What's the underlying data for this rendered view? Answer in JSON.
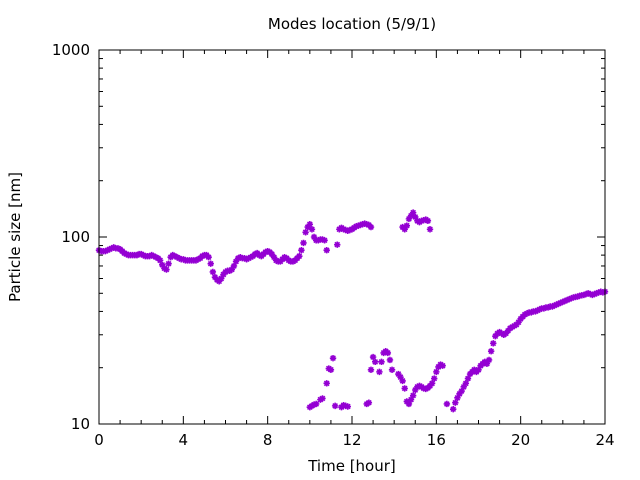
{
  "chart_data": {
    "type": "scatter",
    "title": "Modes location (5/9/1)",
    "xlabel": "Time [hour]",
    "ylabel": "Particle size [nm]",
    "xlim": [
      0,
      24
    ],
    "ylim": [
      10,
      1000
    ],
    "yscale": "log",
    "xticks": [
      0,
      4,
      8,
      12,
      16,
      20,
      24
    ],
    "xtick_labels": [
      "0",
      "4",
      "8",
      "12",
      "16",
      "20",
      "24"
    ],
    "yticks": [
      10,
      100,
      1000
    ],
    "ytick_labels": [
      "10",
      "100",
      "1000"
    ],
    "grid": false,
    "legend": "none",
    "marker_color": "#9400d3",
    "series": [
      {
        "points": [
          [
            0.0,
            85
          ],
          [
            0.1,
            84
          ],
          [
            0.2,
            84
          ],
          [
            0.3,
            84
          ],
          [
            0.4,
            85
          ],
          [
            0.5,
            86
          ],
          [
            0.6,
            87
          ],
          [
            0.7,
            88
          ],
          [
            0.8,
            87
          ],
          [
            0.9,
            87
          ],
          [
            1.0,
            86
          ],
          [
            1.1,
            84
          ],
          [
            1.2,
            82
          ],
          [
            1.3,
            81
          ],
          [
            1.4,
            80
          ],
          [
            1.5,
            80
          ],
          [
            1.6,
            80
          ],
          [
            1.7,
            80
          ],
          [
            1.8,
            80
          ],
          [
            1.9,
            81
          ],
          [
            2.0,
            81
          ],
          [
            2.1,
            80
          ],
          [
            2.2,
            79
          ],
          [
            2.3,
            79
          ],
          [
            2.4,
            79
          ],
          [
            2.5,
            80
          ],
          [
            2.6,
            79
          ],
          [
            2.7,
            78
          ],
          [
            2.8,
            77
          ],
          [
            2.9,
            75
          ],
          [
            3.0,
            71
          ],
          [
            3.1,
            68
          ],
          [
            3.2,
            67
          ],
          [
            3.3,
            72
          ],
          [
            3.4,
            78
          ],
          [
            3.5,
            80
          ],
          [
            3.6,
            79
          ],
          [
            3.7,
            78
          ],
          [
            3.8,
            77
          ],
          [
            3.9,
            76
          ],
          [
            4.0,
            76
          ],
          [
            4.1,
            75
          ],
          [
            4.2,
            75
          ],
          [
            4.3,
            75
          ],
          [
            4.4,
            75
          ],
          [
            4.5,
            75
          ],
          [
            4.6,
            75
          ],
          [
            4.7,
            76
          ],
          [
            4.8,
            77
          ],
          [
            4.9,
            79
          ],
          [
            5.0,
            80
          ],
          [
            5.1,
            80
          ],
          [
            5.2,
            78
          ],
          [
            5.3,
            72
          ],
          [
            5.4,
            65
          ],
          [
            5.5,
            61
          ],
          [
            5.6,
            59
          ],
          [
            5.7,
            58
          ],
          [
            5.8,
            60
          ],
          [
            5.9,
            63
          ],
          [
            6.0,
            65
          ],
          [
            6.1,
            66
          ],
          [
            6.2,
            66
          ],
          [
            6.3,
            67
          ],
          [
            6.4,
            70
          ],
          [
            6.5,
            74
          ],
          [
            6.6,
            77
          ],
          [
            6.7,
            78
          ],
          [
            6.8,
            77
          ],
          [
            6.9,
            77
          ],
          [
            7.0,
            76
          ],
          [
            7.1,
            77
          ],
          [
            7.2,
            78
          ],
          [
            7.3,
            79
          ],
          [
            7.4,
            81
          ],
          [
            7.5,
            82
          ],
          [
            7.6,
            80
          ],
          [
            7.7,
            79
          ],
          [
            7.8,
            81
          ],
          [
            7.9,
            83
          ],
          [
            8.0,
            84
          ],
          [
            8.1,
            83
          ],
          [
            8.2,
            81
          ],
          [
            8.3,
            78
          ],
          [
            8.4,
            75
          ],
          [
            8.5,
            74
          ],
          [
            8.6,
            74
          ],
          [
            8.7,
            76
          ],
          [
            8.8,
            78
          ],
          [
            8.9,
            77
          ],
          [
            9.0,
            75
          ],
          [
            9.1,
            74
          ],
          [
            9.2,
            74
          ],
          [
            9.3,
            75
          ],
          [
            9.4,
            77
          ],
          [
            9.5,
            79
          ],
          [
            9.6,
            85
          ],
          [
            9.7,
            93
          ],
          [
            9.8,
            106
          ],
          [
            9.9,
            113
          ],
          [
            10.0,
            117
          ],
          [
            10.1,
            110
          ],
          [
            10.2,
            100
          ],
          [
            10.3,
            96
          ],
          [
            10.4,
            96
          ],
          [
            10.5,
            97
          ],
          [
            10.6,
            97
          ],
          [
            10.7,
            96
          ],
          [
            10.8,
            85
          ],
          [
            11.3,
            91
          ],
          [
            11.4,
            110
          ],
          [
            11.5,
            112
          ],
          [
            11.6,
            110
          ],
          [
            11.7,
            109
          ],
          [
            11.8,
            108
          ],
          [
            11.9,
            109
          ],
          [
            12.0,
            110
          ],
          [
            12.1,
            112
          ],
          [
            12.2,
            114
          ],
          [
            12.3,
            115
          ],
          [
            12.4,
            116
          ],
          [
            12.5,
            117
          ],
          [
            12.6,
            118
          ],
          [
            12.7,
            117
          ],
          [
            12.8,
            116
          ],
          [
            12.9,
            113
          ],
          [
            14.4,
            113
          ],
          [
            14.5,
            110
          ],
          [
            14.6,
            115
          ],
          [
            14.7,
            125
          ],
          [
            14.8,
            130
          ],
          [
            14.9,
            135
          ],
          [
            15.0,
            128
          ],
          [
            15.1,
            122
          ],
          [
            15.2,
            120
          ],
          [
            15.3,
            122
          ],
          [
            15.4,
            123
          ],
          [
            15.5,
            124
          ],
          [
            15.6,
            122
          ],
          [
            15.7,
            110
          ]
        ]
      },
      {
        "points": [
          [
            10.0,
            12.3
          ],
          [
            10.1,
            12.5
          ],
          [
            10.2,
            12.7
          ],
          [
            10.3,
            12.8
          ],
          [
            10.5,
            13.5
          ],
          [
            10.6,
            13.7
          ],
          [
            10.8,
            16.5
          ],
          [
            10.9,
            19.8
          ],
          [
            11.0,
            19.5
          ],
          [
            11.1,
            22.5
          ],
          [
            11.2,
            12.5
          ],
          [
            11.5,
            12.3
          ],
          [
            11.6,
            12.6
          ],
          [
            11.7,
            12.5
          ],
          [
            11.8,
            12.4
          ],
          [
            12.7,
            12.8
          ],
          [
            12.8,
            13.0
          ],
          [
            12.9,
            19.5
          ],
          [
            13.0,
            22.8
          ],
          [
            13.1,
            21.5
          ],
          [
            13.3,
            19.0
          ],
          [
            13.4,
            21.5
          ],
          [
            13.5,
            24.0
          ],
          [
            13.6,
            24.5
          ],
          [
            13.7,
            24.0
          ],
          [
            13.8,
            22.0
          ],
          [
            13.9,
            19.5
          ],
          [
            14.2,
            18.5
          ],
          [
            14.3,
            17.8
          ],
          [
            14.4,
            17.0
          ],
          [
            14.5,
            15.5
          ],
          [
            14.6,
            13.2
          ],
          [
            14.7,
            12.8
          ],
          [
            14.8,
            13.5
          ],
          [
            14.9,
            14.2
          ],
          [
            15.0,
            15.2
          ],
          [
            15.1,
            15.8
          ],
          [
            15.2,
            16.0
          ],
          [
            15.3,
            15.8
          ],
          [
            15.4,
            15.5
          ],
          [
            15.5,
            15.4
          ],
          [
            15.6,
            15.6
          ],
          [
            15.7,
            16.0
          ],
          [
            15.8,
            16.5
          ],
          [
            15.9,
            17.5
          ],
          [
            16.0,
            19.0
          ],
          [
            16.1,
            20.2
          ],
          [
            16.2,
            20.8
          ],
          [
            16.3,
            20.5
          ],
          [
            16.5,
            12.8
          ],
          [
            16.8,
            12.0
          ],
          [
            16.9,
            13.0
          ],
          [
            17.0,
            13.8
          ],
          [
            17.1,
            14.5
          ],
          [
            17.2,
            15.0
          ],
          [
            17.3,
            15.8
          ],
          [
            17.4,
            16.5
          ],
          [
            17.5,
            17.5
          ],
          [
            17.6,
            18.5
          ],
          [
            17.7,
            19.0
          ],
          [
            17.8,
            19.5
          ],
          [
            17.9,
            19.0
          ],
          [
            18.0,
            19.5
          ],
          [
            18.1,
            20.5
          ],
          [
            18.2,
            21.0
          ],
          [
            18.3,
            21.5
          ],
          [
            18.4,
            21.0
          ],
          [
            18.5,
            22.0
          ],
          [
            18.6,
            24.5
          ],
          [
            18.7,
            27.0
          ],
          [
            18.8,
            29.5
          ],
          [
            18.9,
            30.5
          ],
          [
            19.0,
            31.0
          ],
          [
            19.1,
            30.5
          ],
          [
            19.2,
            30.0
          ],
          [
            19.3,
            30.5
          ],
          [
            19.4,
            31.5
          ],
          [
            19.5,
            32.5
          ],
          [
            19.6,
            33.0
          ],
          [
            19.7,
            33.5
          ],
          [
            19.8,
            34.0
          ],
          [
            19.9,
            35.0
          ],
          [
            20.0,
            36.5
          ],
          [
            20.1,
            37.5
          ],
          [
            20.2,
            38.5
          ],
          [
            20.3,
            39.0
          ],
          [
            20.4,
            39.5
          ],
          [
            20.5,
            39.5
          ],
          [
            20.6,
            40.0
          ],
          [
            20.7,
            40.0
          ],
          [
            20.8,
            40.5
          ],
          [
            20.9,
            41.0
          ],
          [
            21.0,
            41.5
          ],
          [
            21.1,
            41.5
          ],
          [
            21.2,
            42.0
          ],
          [
            21.3,
            42.0
          ],
          [
            21.4,
            42.5
          ],
          [
            21.5,
            42.5
          ],
          [
            21.6,
            43.0
          ],
          [
            21.7,
            43.5
          ],
          [
            21.8,
            44.0
          ],
          [
            21.9,
            44.5
          ],
          [
            22.0,
            45.0
          ],
          [
            22.1,
            45.5
          ],
          [
            22.2,
            46.0
          ],
          [
            22.3,
            46.5
          ],
          [
            22.4,
            47.0
          ],
          [
            22.5,
            47.5
          ],
          [
            22.6,
            47.8
          ],
          [
            22.7,
            48.0
          ],
          [
            22.8,
            48.5
          ],
          [
            22.9,
            48.8
          ],
          [
            23.0,
            49.0
          ],
          [
            23.1,
            49.5
          ],
          [
            23.2,
            50.0
          ],
          [
            23.3,
            49.5
          ],
          [
            23.4,
            49.0
          ],
          [
            23.5,
            49.5
          ],
          [
            23.6,
            50.0
          ],
          [
            23.7,
            50.5
          ],
          [
            23.8,
            51.0
          ],
          [
            23.9,
            50.5
          ],
          [
            24.0,
            51.0
          ]
        ]
      }
    ]
  }
}
